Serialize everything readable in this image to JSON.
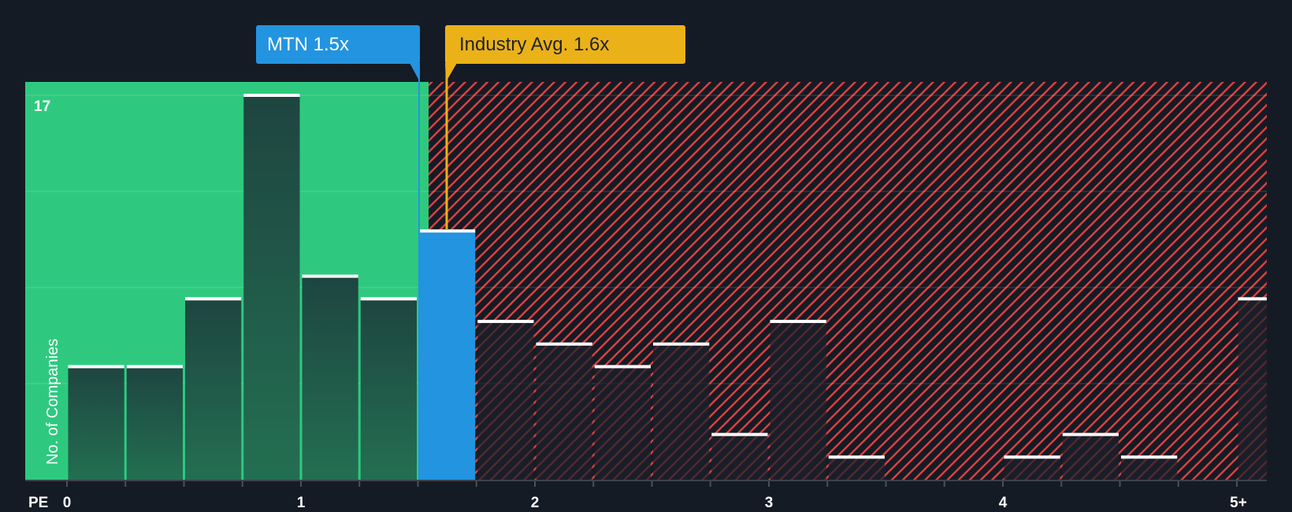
{
  "chart_data": {
    "type": "bar",
    "title": "",
    "xlabel": "PE",
    "ylabel": "No. of Companies",
    "x_tick_labels": [
      "0",
      "1",
      "2",
      "3",
      "4",
      "5+"
    ],
    "y_tick_labels": [
      "17"
    ],
    "ylim": [
      0,
      17
    ],
    "bin_width": 0.25,
    "categories": [
      "0-0.25",
      "0.25-0.5",
      "0.5-0.75",
      "0.75-1.0",
      "1.0-1.25",
      "1.25-1.5",
      "1.5-1.75",
      "1.75-2.0",
      "2.0-2.25",
      "2.25-2.5",
      "2.5-2.75",
      "2.75-3.0",
      "3.0-3.25",
      "3.25-3.5",
      "3.5-3.75",
      "3.75-4.0",
      "4.0-4.25",
      "4.25-4.5",
      "4.5-4.75",
      "4.75-5.0",
      "5+"
    ],
    "values": [
      5,
      5,
      8,
      17,
      9,
      8,
      11,
      7,
      6,
      5,
      6,
      2,
      7,
      1,
      0,
      0,
      1,
      2,
      1,
      0,
      8
    ],
    "highlight_bin_index": 6,
    "markers": [
      {
        "label": "MTN 1.5x",
        "value": 1.5,
        "color": "#2394e0"
      },
      {
        "label": "Industry Avg. 1.6x",
        "value": 1.6,
        "color": "#ebb118"
      }
    ],
    "regions": [
      {
        "name": "undervalued",
        "from": 0,
        "to": 1.55,
        "color": "#2ec97f"
      },
      {
        "name": "overvalued",
        "from": 1.55,
        "to": "5+",
        "color": "#e04141",
        "pattern": "diagonal-hatch"
      }
    ],
    "grid": true,
    "legend": "none"
  },
  "callouts": {
    "company": "MTN 1.5x",
    "industry": "Industry Avg. 1.6x"
  },
  "axis": {
    "x_title": "PE",
    "y_title": "No. of Companies",
    "y_max_label": "17"
  },
  "colors": {
    "background": "#151b24",
    "green_region": "#2ec97f",
    "hatch": "#e04141",
    "company": "#2394e0",
    "industry": "#ebb118",
    "bar_dark": "#1f4a40",
    "cap": "#ffffff"
  }
}
